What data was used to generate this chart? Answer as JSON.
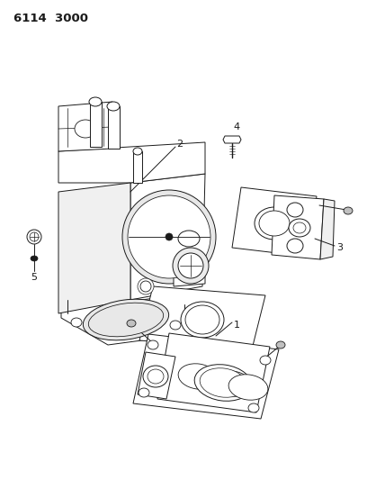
{
  "title": "6114 3000",
  "background_color": "#ffffff",
  "line_color": "#1a1a1a",
  "fig_width": 4.08,
  "fig_height": 5.33,
  "dpi": 100,
  "lw": 0.7
}
